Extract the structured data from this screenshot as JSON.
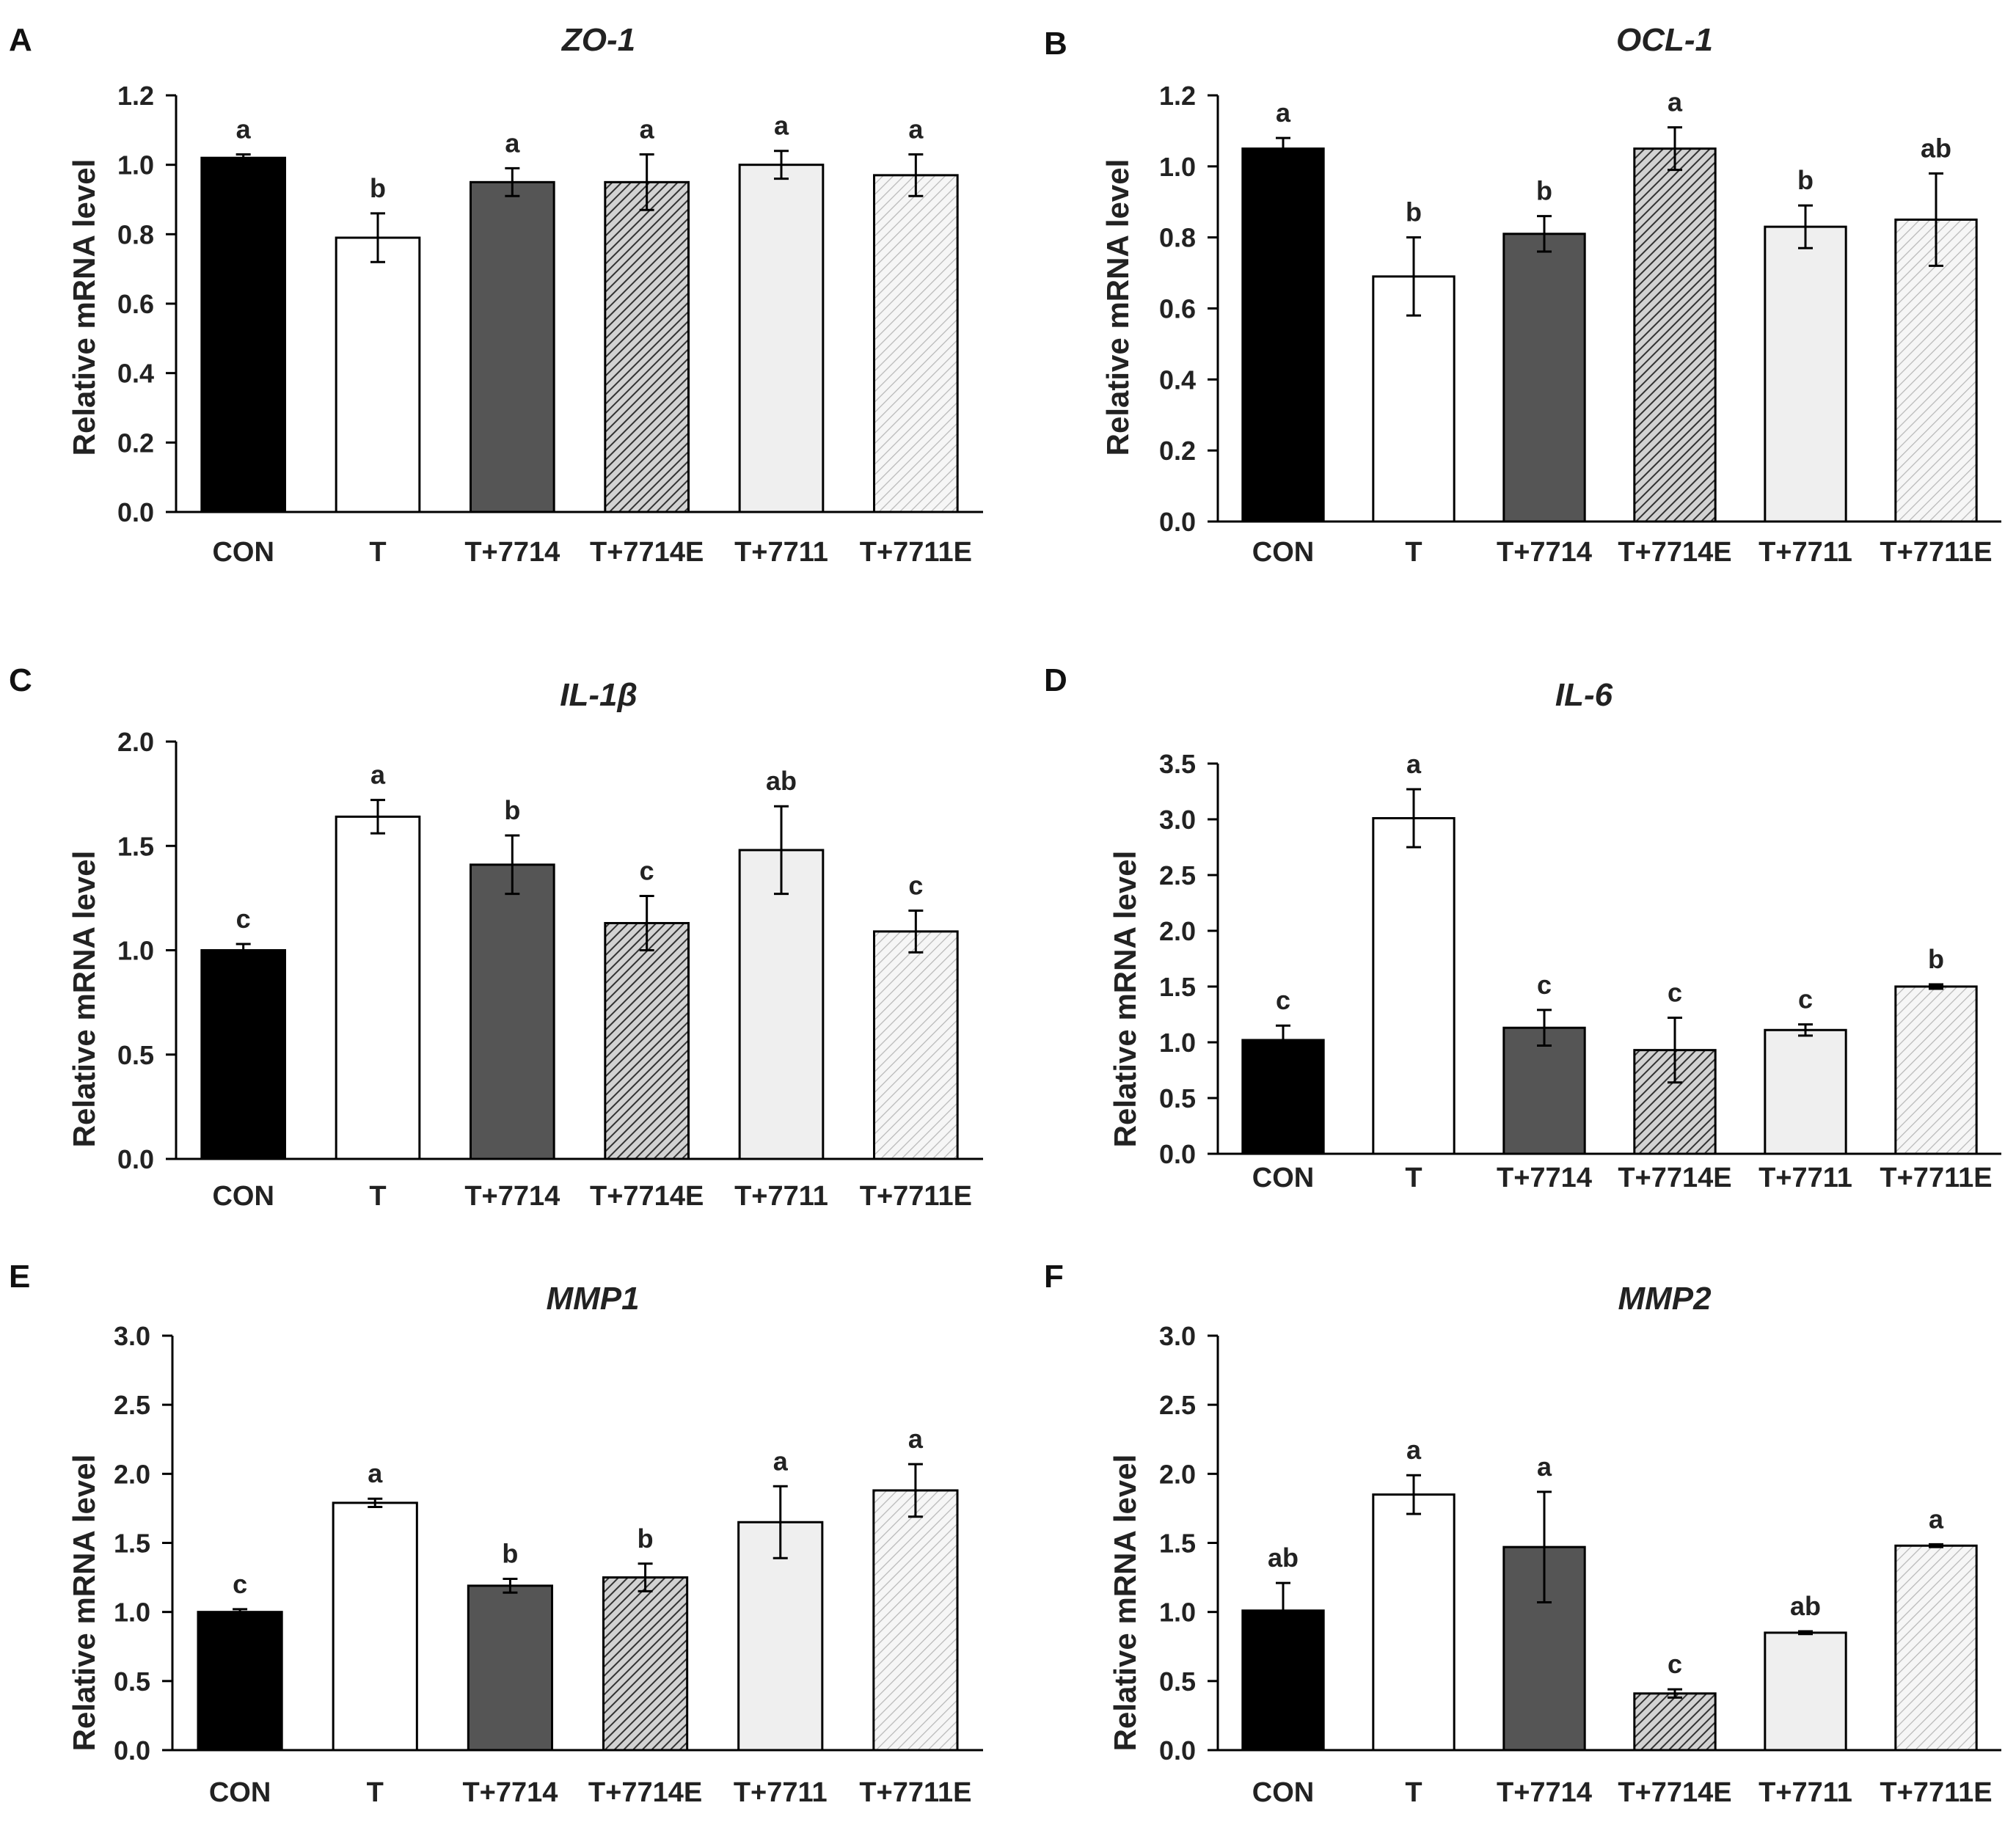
{
  "colors": {
    "CON": "#000000",
    "T": "#ffffff",
    "T+7714": "#555555",
    "T+7714E": "#a8a8a8",
    "T+7711": "#efefef",
    "T+7711E": "#f2f2f2",
    "axis": "#000000",
    "text": "#222222"
  },
  "fills": [
    "solid",
    "solid",
    "solid",
    "hatch-dark",
    "solid",
    "hatch-light"
  ],
  "chart_data": [
    {
      "panel": "A",
      "type": "bar",
      "title": "ZO-1",
      "ylabel": "Relative mRNA level",
      "xlabel": "",
      "categories": [
        "CON",
        "T",
        "T+7714",
        "T+7714E",
        "T+7711",
        "T+7711E"
      ],
      "values": [
        1.02,
        0.79,
        0.95,
        0.95,
        1.0,
        0.97
      ],
      "errors": [
        0.01,
        0.07,
        0.04,
        0.08,
        0.04,
        0.06
      ],
      "letters": [
        "a",
        "b",
        "a",
        "a",
        "a",
        "a"
      ],
      "ylim": [
        0,
        1.2
      ],
      "yticks": [
        "0.0",
        "0.2",
        "0.4",
        "0.6",
        "0.8",
        "1.0",
        "1.2"
      ],
      "grid": false
    },
    {
      "panel": "B",
      "type": "bar",
      "title": "OCL-1",
      "ylabel": "Relative mRNA level",
      "xlabel": "",
      "categories": [
        "CON",
        "T",
        "T+7714",
        "T+7714E",
        "T+7711",
        "T+7711E"
      ],
      "values": [
        1.05,
        0.69,
        0.81,
        1.05,
        0.83,
        0.85
      ],
      "errors": [
        0.03,
        0.11,
        0.05,
        0.06,
        0.06,
        0.13
      ],
      "letters": [
        "a",
        "b",
        "b",
        "a",
        "b",
        "ab"
      ],
      "ylim": [
        0,
        1.2
      ],
      "yticks": [
        "0.0",
        "0.2",
        "0.4",
        "0.6",
        "0.8",
        "1.0",
        "1.2"
      ],
      "grid": false
    },
    {
      "panel": "C",
      "type": "bar",
      "title": "IL-1β",
      "ylabel": "Relative mRNA level",
      "xlabel": "",
      "categories": [
        "CON",
        "T",
        "T+7714",
        "T+7714E",
        "T+7711",
        "T+7711E"
      ],
      "values": [
        1.0,
        1.64,
        1.41,
        1.13,
        1.48,
        1.09
      ],
      "errors": [
        0.03,
        0.08,
        0.14,
        0.13,
        0.21,
        0.1
      ],
      "letters": [
        "c",
        "a",
        "b",
        "c",
        "ab",
        "c"
      ],
      "ylim": [
        0,
        2.0
      ],
      "yticks": [
        "0.0",
        "0.5",
        "1.0",
        "1.5",
        "2.0"
      ],
      "grid": false
    },
    {
      "panel": "D",
      "type": "bar",
      "title": "IL-6",
      "ylabel": "Relative mRNA level",
      "xlabel": "",
      "categories": [
        "CON",
        "T",
        "T+7714",
        "T+7714E",
        "T+7711",
        "T+7711E"
      ],
      "values": [
        1.02,
        3.01,
        1.13,
        0.93,
        1.11,
        1.5
      ],
      "errors": [
        0.13,
        0.26,
        0.16,
        0.29,
        0.05,
        0.02
      ],
      "letters": [
        "c",
        "a",
        "c",
        "c",
        "c",
        "b"
      ],
      "ylim": [
        0,
        3.5
      ],
      "yticks": [
        "0.0",
        "0.5",
        "1.0",
        "1.5",
        "2.0",
        "2.5",
        "3.0",
        "3.5"
      ],
      "grid": false
    },
    {
      "panel": "E",
      "type": "bar",
      "title": "MMP1",
      "ylabel": "Relative mRNA level",
      "xlabel": "",
      "categories": [
        "CON",
        "T",
        "T+7714",
        "T+7714E",
        "T+7711",
        "T+7711E"
      ],
      "values": [
        1.0,
        1.79,
        1.19,
        1.25,
        1.65,
        1.88
      ],
      "errors": [
        0.02,
        0.03,
        0.05,
        0.1,
        0.26,
        0.19
      ],
      "letters": [
        "c",
        "a",
        "b",
        "b",
        "a",
        "a"
      ],
      "ylim": [
        0,
        3.0
      ],
      "yticks": [
        "0.0",
        "0.5",
        "1.0",
        "1.5",
        "2.0",
        "2.5",
        "3.0"
      ],
      "grid": false
    },
    {
      "panel": "F",
      "type": "bar",
      "title": "MMP2",
      "ylabel": "Relative mRNA level",
      "xlabel": "",
      "categories": [
        "CON",
        "T",
        "T+7714",
        "T+7714E",
        "T+7711",
        "T+7711E"
      ],
      "values": [
        1.01,
        1.85,
        1.47,
        0.41,
        0.85,
        1.48
      ],
      "errors": [
        0.2,
        0.14,
        0.4,
        0.03,
        0.01,
        0.01
      ],
      "letters": [
        "ab",
        "a",
        "a",
        "c",
        "ab",
        "a"
      ],
      "ylim": [
        0,
        3.0
      ],
      "yticks": [
        "0.0",
        "0.5",
        "1.0",
        "1.5",
        "2.0",
        "2.5",
        "3.0"
      ],
      "grid": false
    }
  ]
}
